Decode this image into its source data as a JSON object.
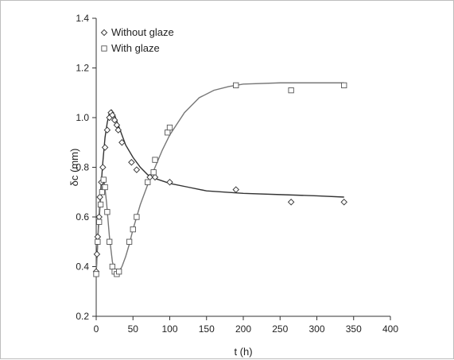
{
  "chart_data": {
    "type": "scatter",
    "xlabel": "t (h)",
    "ylabel": "δc (mm)",
    "xlim": [
      0,
      400
    ],
    "ylim": [
      0.2,
      1.4
    ],
    "xticks": [
      "0",
      "50",
      "100",
      "150",
      "200",
      "250",
      "300",
      "350",
      "400"
    ],
    "yticks": [
      "0.2",
      "0.4",
      "0.6",
      "0.8",
      "1.0",
      "1.2",
      "1.4"
    ],
    "grid": false,
    "legend_position": "top-left",
    "series": [
      {
        "name": "Without glaze",
        "marker": "diamond",
        "points": [
          [
            0,
            0.38
          ],
          [
            1,
            0.45
          ],
          [
            2,
            0.52
          ],
          [
            4,
            0.6
          ],
          [
            5,
            0.68
          ],
          [
            7,
            0.74
          ],
          [
            9,
            0.8
          ],
          [
            12,
            0.88
          ],
          [
            15,
            0.95
          ],
          [
            18,
            1.0
          ],
          [
            20,
            1.02
          ],
          [
            22,
            1.01
          ],
          [
            25,
            0.99
          ],
          [
            28,
            0.97
          ],
          [
            30,
            0.95
          ],
          [
            35,
            0.9
          ],
          [
            48,
            0.82
          ],
          [
            55,
            0.79
          ],
          [
            73,
            0.76
          ],
          [
            80,
            0.76
          ],
          [
            100,
            0.74
          ],
          [
            190,
            0.71
          ],
          [
            265,
            0.66
          ],
          [
            337,
            0.66
          ]
        ],
        "fit": [
          [
            0,
            0.38
          ],
          [
            3,
            0.56
          ],
          [
            6,
            0.7
          ],
          [
            9,
            0.82
          ],
          [
            12,
            0.92
          ],
          [
            15,
            0.98
          ],
          [
            18,
            1.02
          ],
          [
            21,
            1.03
          ],
          [
            25,
            1.01
          ],
          [
            30,
            0.97
          ],
          [
            35,
            0.93
          ],
          [
            40,
            0.89
          ],
          [
            50,
            0.84
          ],
          [
            60,
            0.8
          ],
          [
            70,
            0.77
          ],
          [
            80,
            0.755
          ],
          [
            100,
            0.735
          ],
          [
            125,
            0.72
          ],
          [
            150,
            0.705
          ],
          [
            200,
            0.695
          ],
          [
            250,
            0.69
          ],
          [
            300,
            0.685
          ],
          [
            337,
            0.68
          ]
        ]
      },
      {
        "name": "With glaze",
        "marker": "square",
        "points": [
          [
            0,
            0.37
          ],
          [
            2,
            0.5
          ],
          [
            4,
            0.58
          ],
          [
            6,
            0.65
          ],
          [
            8,
            0.7
          ],
          [
            10,
            0.75
          ],
          [
            12,
            0.72
          ],
          [
            15,
            0.62
          ],
          [
            18,
            0.5
          ],
          [
            22,
            0.4
          ],
          [
            25,
            0.38
          ],
          [
            28,
            0.37
          ],
          [
            31,
            0.38
          ],
          [
            45,
            0.5
          ],
          [
            50,
            0.55
          ],
          [
            55,
            0.6
          ],
          [
            70,
            0.74
          ],
          [
            78,
            0.78
          ],
          [
            80,
            0.83
          ],
          [
            97,
            0.94
          ],
          [
            100,
            0.96
          ],
          [
            190,
            1.13
          ],
          [
            265,
            1.11
          ],
          [
            337,
            1.13
          ]
        ],
        "fit": [
          [
            0,
            0.37
          ],
          [
            3,
            0.55
          ],
          [
            6,
            0.67
          ],
          [
            9,
            0.73
          ],
          [
            11,
            0.74
          ],
          [
            14,
            0.66
          ],
          [
            18,
            0.52
          ],
          [
            22,
            0.42
          ],
          [
            26,
            0.37
          ],
          [
            30,
            0.375
          ],
          [
            35,
            0.4
          ],
          [
            40,
            0.44
          ],
          [
            45,
            0.49
          ],
          [
            50,
            0.55
          ],
          [
            55,
            0.6
          ],
          [
            60,
            0.65
          ],
          [
            70,
            0.73
          ],
          [
            80,
            0.8
          ],
          [
            90,
            0.87
          ],
          [
            100,
            0.93
          ],
          [
            120,
            1.02
          ],
          [
            140,
            1.08
          ],
          [
            160,
            1.11
          ],
          [
            180,
            1.125
          ],
          [
            200,
            1.135
          ],
          [
            250,
            1.14
          ],
          [
            300,
            1.14
          ],
          [
            337,
            1.14
          ]
        ]
      }
    ]
  }
}
